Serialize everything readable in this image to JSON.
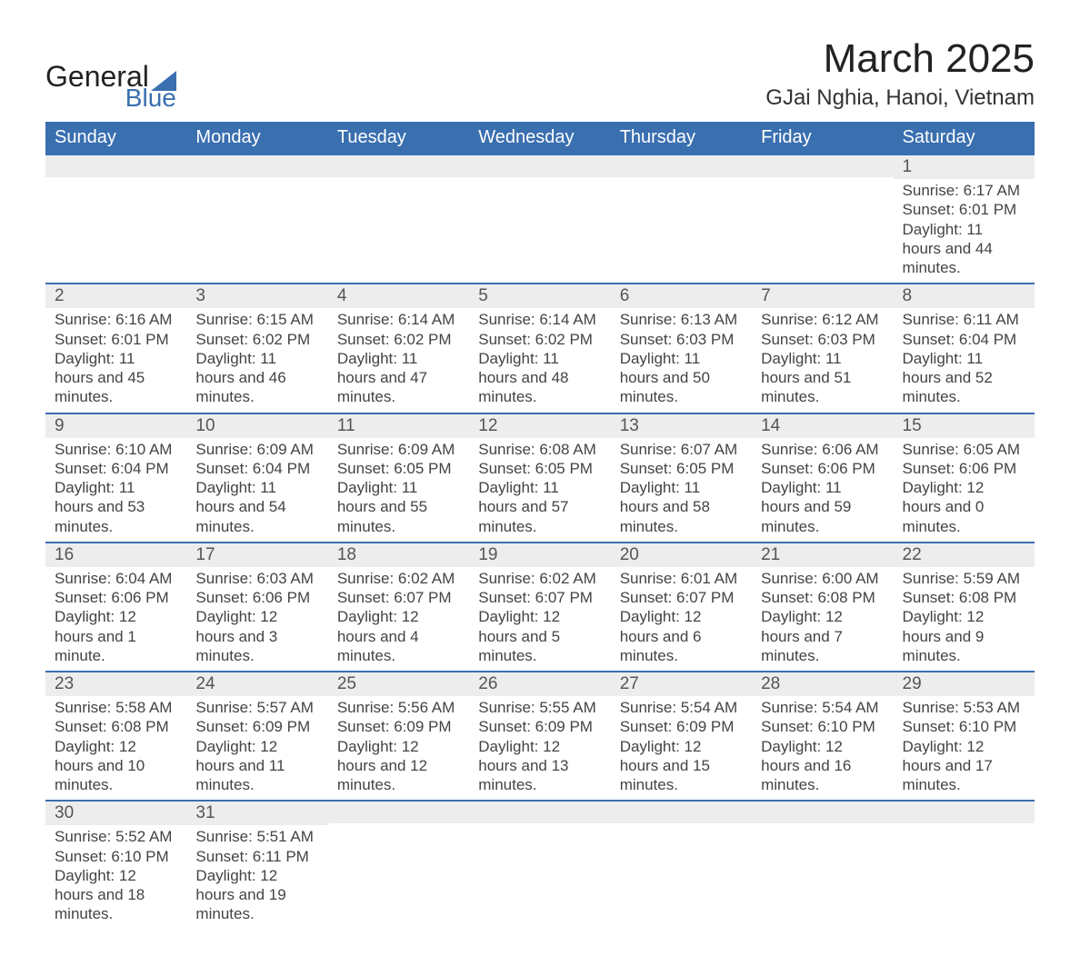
{
  "logo": {
    "word1": "General",
    "word2": "Blue"
  },
  "header": {
    "month_title": "March 2025",
    "location": "GJai Nghia, Hanoi, Vietnam"
  },
  "colors": {
    "header_bg": "#3a6fb0",
    "header_fg": "#ffffff",
    "daynum_bg": "#ededed",
    "row_border": "#3a6fb0",
    "text": "#444444",
    "page_bg": "#ffffff"
  },
  "typography": {
    "month_title_pt": 33,
    "location_pt": 18,
    "dayheader_pt": 15,
    "daynum_pt": 14,
    "body_pt": 13
  },
  "day_headers": [
    "Sunday",
    "Monday",
    "Tuesday",
    "Wednesday",
    "Thursday",
    "Friday",
    "Saturday"
  ],
  "weeks": [
    [
      {
        "day": "",
        "sunrise": "",
        "sunset": "",
        "daylight": ""
      },
      {
        "day": "",
        "sunrise": "",
        "sunset": "",
        "daylight": ""
      },
      {
        "day": "",
        "sunrise": "",
        "sunset": "",
        "daylight": ""
      },
      {
        "day": "",
        "sunrise": "",
        "sunset": "",
        "daylight": ""
      },
      {
        "day": "",
        "sunrise": "",
        "sunset": "",
        "daylight": ""
      },
      {
        "day": "",
        "sunrise": "",
        "sunset": "",
        "daylight": ""
      },
      {
        "day": "1",
        "sunrise": "Sunrise: 6:17 AM",
        "sunset": "Sunset: 6:01 PM",
        "daylight": "Daylight: 11 hours and 44 minutes."
      }
    ],
    [
      {
        "day": "2",
        "sunrise": "Sunrise: 6:16 AM",
        "sunset": "Sunset: 6:01 PM",
        "daylight": "Daylight: 11 hours and 45 minutes."
      },
      {
        "day": "3",
        "sunrise": "Sunrise: 6:15 AM",
        "sunset": "Sunset: 6:02 PM",
        "daylight": "Daylight: 11 hours and 46 minutes."
      },
      {
        "day": "4",
        "sunrise": "Sunrise: 6:14 AM",
        "sunset": "Sunset: 6:02 PM",
        "daylight": "Daylight: 11 hours and 47 minutes."
      },
      {
        "day": "5",
        "sunrise": "Sunrise: 6:14 AM",
        "sunset": "Sunset: 6:02 PM",
        "daylight": "Daylight: 11 hours and 48 minutes."
      },
      {
        "day": "6",
        "sunrise": "Sunrise: 6:13 AM",
        "sunset": "Sunset: 6:03 PM",
        "daylight": "Daylight: 11 hours and 50 minutes."
      },
      {
        "day": "7",
        "sunrise": "Sunrise: 6:12 AM",
        "sunset": "Sunset: 6:03 PM",
        "daylight": "Daylight: 11 hours and 51 minutes."
      },
      {
        "day": "8",
        "sunrise": "Sunrise: 6:11 AM",
        "sunset": "Sunset: 6:04 PM",
        "daylight": "Daylight: 11 hours and 52 minutes."
      }
    ],
    [
      {
        "day": "9",
        "sunrise": "Sunrise: 6:10 AM",
        "sunset": "Sunset: 6:04 PM",
        "daylight": "Daylight: 11 hours and 53 minutes."
      },
      {
        "day": "10",
        "sunrise": "Sunrise: 6:09 AM",
        "sunset": "Sunset: 6:04 PM",
        "daylight": "Daylight: 11 hours and 54 minutes."
      },
      {
        "day": "11",
        "sunrise": "Sunrise: 6:09 AM",
        "sunset": "Sunset: 6:05 PM",
        "daylight": "Daylight: 11 hours and 55 minutes."
      },
      {
        "day": "12",
        "sunrise": "Sunrise: 6:08 AM",
        "sunset": "Sunset: 6:05 PM",
        "daylight": "Daylight: 11 hours and 57 minutes."
      },
      {
        "day": "13",
        "sunrise": "Sunrise: 6:07 AM",
        "sunset": "Sunset: 6:05 PM",
        "daylight": "Daylight: 11 hours and 58 minutes."
      },
      {
        "day": "14",
        "sunrise": "Sunrise: 6:06 AM",
        "sunset": "Sunset: 6:06 PM",
        "daylight": "Daylight: 11 hours and 59 minutes."
      },
      {
        "day": "15",
        "sunrise": "Sunrise: 6:05 AM",
        "sunset": "Sunset: 6:06 PM",
        "daylight": "Daylight: 12 hours and 0 minutes."
      }
    ],
    [
      {
        "day": "16",
        "sunrise": "Sunrise: 6:04 AM",
        "sunset": "Sunset: 6:06 PM",
        "daylight": "Daylight: 12 hours and 1 minute."
      },
      {
        "day": "17",
        "sunrise": "Sunrise: 6:03 AM",
        "sunset": "Sunset: 6:06 PM",
        "daylight": "Daylight: 12 hours and 3 minutes."
      },
      {
        "day": "18",
        "sunrise": "Sunrise: 6:02 AM",
        "sunset": "Sunset: 6:07 PM",
        "daylight": "Daylight: 12 hours and 4 minutes."
      },
      {
        "day": "19",
        "sunrise": "Sunrise: 6:02 AM",
        "sunset": "Sunset: 6:07 PM",
        "daylight": "Daylight: 12 hours and 5 minutes."
      },
      {
        "day": "20",
        "sunrise": "Sunrise: 6:01 AM",
        "sunset": "Sunset: 6:07 PM",
        "daylight": "Daylight: 12 hours and 6 minutes."
      },
      {
        "day": "21",
        "sunrise": "Sunrise: 6:00 AM",
        "sunset": "Sunset: 6:08 PM",
        "daylight": "Daylight: 12 hours and 7 minutes."
      },
      {
        "day": "22",
        "sunrise": "Sunrise: 5:59 AM",
        "sunset": "Sunset: 6:08 PM",
        "daylight": "Daylight: 12 hours and 9 minutes."
      }
    ],
    [
      {
        "day": "23",
        "sunrise": "Sunrise: 5:58 AM",
        "sunset": "Sunset: 6:08 PM",
        "daylight": "Daylight: 12 hours and 10 minutes."
      },
      {
        "day": "24",
        "sunrise": "Sunrise: 5:57 AM",
        "sunset": "Sunset: 6:09 PM",
        "daylight": "Daylight: 12 hours and 11 minutes."
      },
      {
        "day": "25",
        "sunrise": "Sunrise: 5:56 AM",
        "sunset": "Sunset: 6:09 PM",
        "daylight": "Daylight: 12 hours and 12 minutes."
      },
      {
        "day": "26",
        "sunrise": "Sunrise: 5:55 AM",
        "sunset": "Sunset: 6:09 PM",
        "daylight": "Daylight: 12 hours and 13 minutes."
      },
      {
        "day": "27",
        "sunrise": "Sunrise: 5:54 AM",
        "sunset": "Sunset: 6:09 PM",
        "daylight": "Daylight: 12 hours and 15 minutes."
      },
      {
        "day": "28",
        "sunrise": "Sunrise: 5:54 AM",
        "sunset": "Sunset: 6:10 PM",
        "daylight": "Daylight: 12 hours and 16 minutes."
      },
      {
        "day": "29",
        "sunrise": "Sunrise: 5:53 AM",
        "sunset": "Sunset: 6:10 PM",
        "daylight": "Daylight: 12 hours and 17 minutes."
      }
    ],
    [
      {
        "day": "30",
        "sunrise": "Sunrise: 5:52 AM",
        "sunset": "Sunset: 6:10 PM",
        "daylight": "Daylight: 12 hours and 18 minutes."
      },
      {
        "day": "31",
        "sunrise": "Sunrise: 5:51 AM",
        "sunset": "Sunset: 6:11 PM",
        "daylight": "Daylight: 12 hours and 19 minutes."
      },
      {
        "day": "",
        "sunrise": "",
        "sunset": "",
        "daylight": ""
      },
      {
        "day": "",
        "sunrise": "",
        "sunset": "",
        "daylight": ""
      },
      {
        "day": "",
        "sunrise": "",
        "sunset": "",
        "daylight": ""
      },
      {
        "day": "",
        "sunrise": "",
        "sunset": "",
        "daylight": ""
      },
      {
        "day": "",
        "sunrise": "",
        "sunset": "",
        "daylight": ""
      }
    ]
  ]
}
